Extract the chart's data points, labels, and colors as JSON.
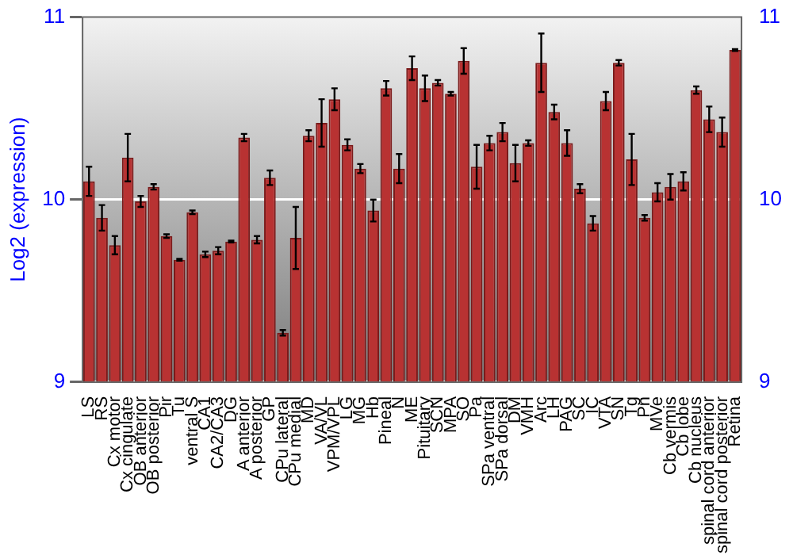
{
  "chart_data": {
    "type": "bar",
    "ylabel": "Log2 (expression)",
    "categories": [
      "LS",
      "RS",
      "Cx motor",
      "Cx cingulate",
      "OB anterior",
      "OB posterior",
      "Pir",
      "Tu",
      "ventral S",
      "CA1",
      "CA2/CA3",
      "DG",
      "A anterior",
      "A posterior",
      "GP",
      "CPu lateral",
      "CPu medial",
      "MD",
      "VA/VL",
      "VPM/VPL",
      "LG",
      "MG",
      "Hb",
      "Pineal",
      "N",
      "ME",
      "Pituitary",
      "SCN",
      "MPA",
      "SO",
      "Pa",
      "SPa ventral",
      "SPa dorsal",
      "DM",
      "VMH",
      "Arc",
      "LH",
      "PAG",
      "SC",
      "IC",
      "VTA",
      "SN",
      "Tg",
      "Pn",
      "MVe",
      "Cb vermis",
      "Cb lobe",
      "Cb nucleus",
      "spinal cord anterior",
      "spinal cord posterior",
      "Retina"
    ],
    "values": [
      10.1,
      9.9,
      9.75,
      10.23,
      9.99,
      10.07,
      9.8,
      9.67,
      9.93,
      9.7,
      9.72,
      9.77,
      10.34,
      9.78,
      10.12,
      9.27,
      9.79,
      10.35,
      10.42,
      10.55,
      10.3,
      10.17,
      9.94,
      10.61,
      10.17,
      10.72,
      10.61,
      10.64,
      10.58,
      10.76,
      10.18,
      10.31,
      10.37,
      10.2,
      10.31,
      10.75,
      10.48,
      10.31,
      10.06,
      9.87,
      10.54,
      10.75,
      10.22,
      9.9,
      10.04,
      10.07,
      10.1,
      10.6,
      10.44,
      10.37,
      10.82
    ],
    "errors": [
      0.08,
      0.07,
      0.05,
      0.13,
      0.03,
      0.015,
      0.01,
      0.005,
      0.01,
      0.015,
      0.02,
      0.005,
      0.02,
      0.02,
      0.04,
      0.015,
      0.17,
      0.03,
      0.13,
      0.06,
      0.03,
      0.025,
      0.06,
      0.04,
      0.08,
      0.065,
      0.07,
      0.015,
      0.01,
      0.07,
      0.12,
      0.04,
      0.05,
      0.1,
      0.015,
      0.16,
      0.04,
      0.07,
      0.025,
      0.04,
      0.05,
      0.015,
      0.14,
      0.015,
      0.05,
      0.07,
      0.05,
      0.02,
      0.07,
      0.08,
      0.005
    ],
    "color": "#b83232",
    "ylim": [
      9,
      11
    ],
    "yticks": [
      9,
      10,
      11
    ],
    "y2lim": [
      9,
      11
    ],
    "y2ticks": [
      9,
      10,
      11
    ],
    "grid": "y"
  }
}
